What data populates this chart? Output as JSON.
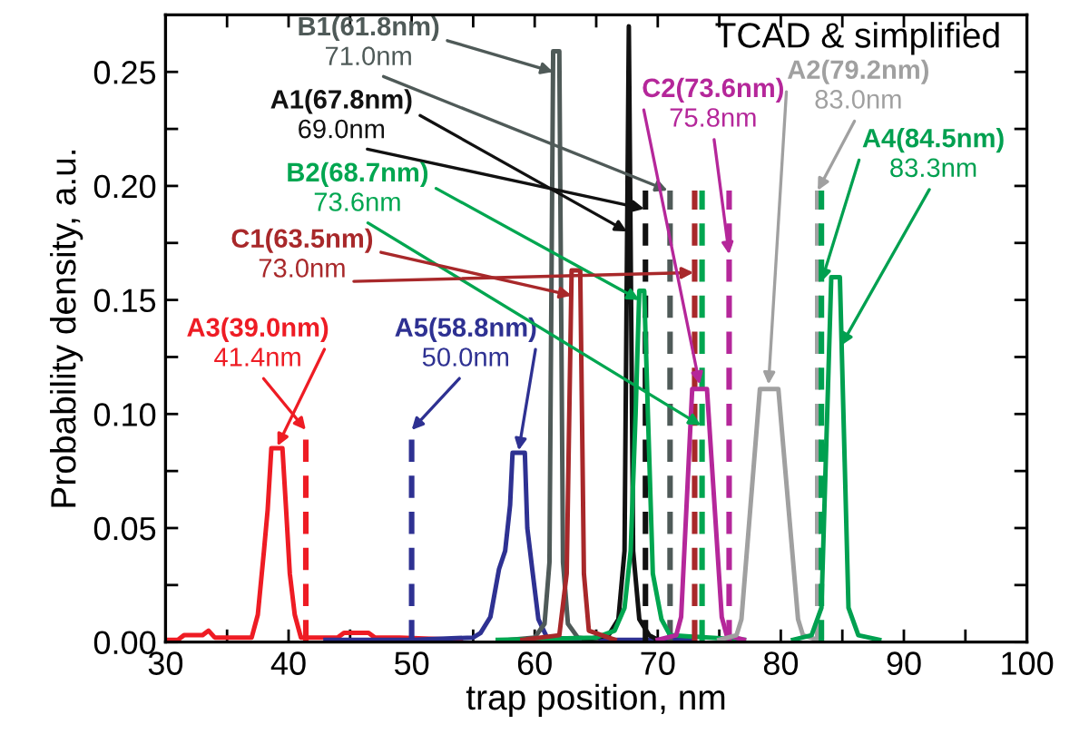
{
  "chart_data": {
    "type": "line",
    "xlabel": "trap position, nm",
    "ylabel": "Probability density, a.u.",
    "xlim": [
      30,
      100
    ],
    "ylim": [
      0,
      0.275
    ],
    "xticks": [
      30,
      {
        "value": 35,
        "label": null
      },
      40,
      {
        "value": 45,
        "label": null
      },
      50,
      {
        "value": 55,
        "label": null
      },
      60,
      {
        "value": 65,
        "label": null
      },
      70,
      {
        "value": 75,
        "label": null
      },
      80,
      {
        "value": 85,
        "label": null
      },
      90,
      {
        "value": 95,
        "label": null
      },
      100
    ],
    "yticks": [
      {
        "value": 0,
        "label": "0.00"
      },
      {
        "value": 0.025,
        "label": null
      },
      {
        "value": 0.05,
        "label": "0.05"
      },
      {
        "value": 0.075,
        "label": null
      },
      {
        "value": 0.1,
        "label": "0.10"
      },
      {
        "value": 0.125,
        "label": null
      },
      {
        "value": 0.15,
        "label": "0.15"
      },
      {
        "value": 0.175,
        "label": null
      },
      {
        "value": 0.2,
        "label": "0.20"
      },
      {
        "value": 0.225,
        "label": null
      },
      {
        "value": 0.25,
        "label": "0.25"
      }
    ],
    "legend": false,
    "grid": false,
    "marker": "none",
    "annotations": [
      {
        "text": "TCAD & simplified"
      }
    ],
    "series": [
      {
        "name": "A3(39.0nm)",
        "color": "#ee1c24",
        "line_style": "solid",
        "x": [
          30,
          31,
          31.5,
          33,
          33.5,
          34,
          35,
          37,
          37.5,
          38,
          38.3,
          38.6,
          39.5,
          39.8,
          40.1,
          40.5,
          41,
          44,
          44.5,
          46.5,
          47,
          49,
          54
        ],
        "values": [
          0.001,
          0.001,
          0.003,
          0.003,
          0.005,
          0.002,
          0.002,
          0.002,
          0.012,
          0.04,
          0.058,
          0.085,
          0.085,
          0.058,
          0.03,
          0.012,
          0.002,
          0.002,
          0.004,
          0.004,
          0.002,
          0.002,
          0.001
        ]
      },
      {
        "name": "41.4nm",
        "color": "#ee1c24",
        "line_style": "dashed",
        "x": [
          41.4,
          41.4
        ],
        "values": [
          0,
          0.093
        ]
      },
      {
        "name": "A5(58.8nm)",
        "color": "#2e3192",
        "line_style": "solid",
        "x": [
          43,
          50,
          55,
          55.6,
          56.4,
          57.1,
          57.6,
          58.0,
          58.2,
          59.2,
          59.4,
          59.8,
          60.3,
          61,
          65,
          73
        ],
        "values": [
          0.001,
          0.001,
          0.002,
          0.004,
          0.011,
          0.032,
          0.04,
          0.06,
          0.083,
          0.083,
          0.05,
          0.032,
          0.01,
          0.002,
          0.001,
          0.001
        ]
      },
      {
        "name": "50.0nm",
        "color": "#2e3192",
        "line_style": "dashed",
        "x": [
          50,
          50
        ],
        "values": [
          0,
          0.093
        ]
      },
      {
        "name": "B1(61.8nm)",
        "color": "#4f5a58",
        "line_style": "solid",
        "x": [
          58,
          60,
          60.8,
          61.2,
          61.5,
          62.0,
          62.3,
          62.7,
          63.5,
          65
        ],
        "values": [
          0.001,
          0.002,
          0.008,
          0.035,
          0.259,
          0.259,
          0.035,
          0.008,
          0.002,
          0.001
        ]
      },
      {
        "name": "71.0nm",
        "color": "#4f5a58",
        "line_style": "dashed",
        "x": [
          71,
          71
        ],
        "values": [
          0,
          0.198
        ]
      },
      {
        "name": "A1(67.8nm)",
        "color": "#111111",
        "line_style": "solid",
        "x": [
          64,
          66,
          66.8,
          67.3,
          67.65,
          68.0,
          68.5,
          69.3,
          70
        ],
        "values": [
          0.001,
          0.003,
          0.01,
          0.04,
          0.27,
          0.04,
          0.01,
          0.003,
          0.001
        ]
      },
      {
        "name": "69.0nm",
        "color": "#111111",
        "line_style": "dashed",
        "x": [
          69,
          69
        ],
        "values": [
          0,
          0.198
        ]
      },
      {
        "name": "B2(68.7nm)",
        "color": "#00a650",
        "line_style": "solid",
        "x": [
          57,
          65,
          66.5,
          67.3,
          67.8,
          68.2,
          68.5,
          68.9,
          69.2,
          69.6,
          70.3,
          71,
          77
        ],
        "values": [
          0.001,
          0.002,
          0.005,
          0.015,
          0.04,
          0.1,
          0.154,
          0.154,
          0.1,
          0.03,
          0.01,
          0.003,
          0.001
        ]
      },
      {
        "name": "73.6nm",
        "color": "#00a650",
        "line_style": "dashed",
        "x": [
          73.6,
          73.6
        ],
        "values": [
          0,
          0.198
        ]
      },
      {
        "name": "C1(63.5nm)",
        "color": "#a8282a",
        "line_style": "solid",
        "x": [
          59,
          62,
          62.6,
          63.0,
          63.7,
          64.0,
          64.4,
          66.5
        ],
        "values": [
          0.001,
          0.003,
          0.03,
          0.163,
          0.163,
          0.03,
          0.005,
          0.001
        ]
      },
      {
        "name": "73.0nm",
        "color": "#a8282a",
        "line_style": "dashed",
        "x": [
          73,
          73
        ],
        "values": [
          0,
          0.198
        ]
      },
      {
        "name": "C2(73.6nm)",
        "color": "#b5279a",
        "line_style": "solid",
        "x": [
          70,
          71.5,
          71.9,
          72.8,
          74.0,
          75.2,
          75.6,
          77
        ],
        "values": [
          0.001,
          0.003,
          0.011,
          0.111,
          0.111,
          0.011,
          0.003,
          0.001
        ]
      },
      {
        "name": "75.8nm",
        "color": "#b5279a",
        "line_style": "dashed",
        "x": [
          75.8,
          75.8
        ],
        "values": [
          0,
          0.198
        ]
      },
      {
        "name": "A2(79.2nm)",
        "color": "#a0a0a0",
        "line_style": "solid",
        "x": [
          75,
          76.4,
          76.8,
          78.3,
          79.8,
          81.4,
          81.8,
          83
        ],
        "values": [
          0.001,
          0.003,
          0.01,
          0.111,
          0.111,
          0.01,
          0.003,
          0.001
        ]
      },
      {
        "name": "83.0nm",
        "color": "#a0a0a0",
        "line_style": "dashed",
        "x": [
          83,
          83
        ],
        "values": [
          0,
          0.198
        ]
      },
      {
        "name": "A4(84.5nm)",
        "color": "#00a050",
        "line_style": "solid",
        "x": [
          81,
          82.5,
          83.3,
          84.1,
          84.8,
          85.5,
          86.3,
          88
        ],
        "values": [
          0.001,
          0.003,
          0.015,
          0.16,
          0.16,
          0.015,
          0.003,
          0.001
        ]
      },
      {
        "name": "83.3nm",
        "color": "#00a050",
        "line_style": "dashed",
        "x": [
          83.3,
          83.3
        ],
        "values": [
          0,
          0.198
        ]
      }
    ]
  }
}
